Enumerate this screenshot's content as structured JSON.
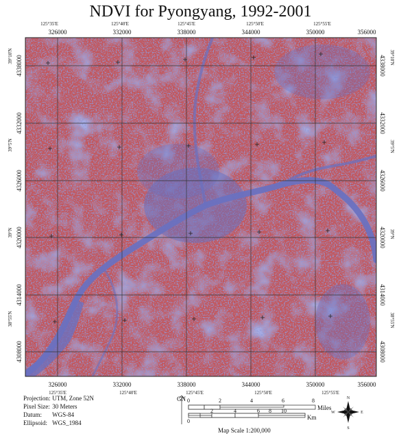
{
  "title": "NDVI for Pyongyang, 1992-2001",
  "colors": {
    "vegetation": "#c4565a",
    "water_builtup": "#6a71c0",
    "grid": "#333333"
  },
  "map": {
    "utm_easting_labels": [
      "326000",
      "332000",
      "338000",
      "344000",
      "350000",
      "356000"
    ],
    "utm_northing_labels": [
      "4338000",
      "4332000",
      "4326000",
      "4320000",
      "4314000",
      "4308000"
    ],
    "longitude_labels": [
      "125°35'E",
      "125°40'E",
      "125°45'E",
      "125°50'E",
      "125°55'E"
    ],
    "latitude_labels": [
      "39°10'N",
      "39°5'N",
      "39°N",
      "38°55'N"
    ]
  },
  "info": {
    "projection_label": "Projection:",
    "projection_value": "UTM, Zone 52N",
    "pixel_label": "Pixel Size:",
    "pixel_value": "30 Meters",
    "datum_label": "Datum:",
    "datum_value": "WGS-84",
    "ellipsoid_label": "Ellipsoid:",
    "ellipsoid_value": "WGS_1984"
  },
  "scalebar": {
    "gn_label": "GN",
    "miles_label": "Miles",
    "km_label": "Km",
    "miles_ticks": [
      "0",
      "2",
      "4",
      "6",
      "8"
    ],
    "km_ticks": [
      "0",
      "2",
      "4",
      "6",
      "8",
      "10"
    ],
    "caption": "Map Scale 1:200,000"
  },
  "compass": {
    "n": "N",
    "s": "S",
    "e": "E",
    "w": "W"
  }
}
